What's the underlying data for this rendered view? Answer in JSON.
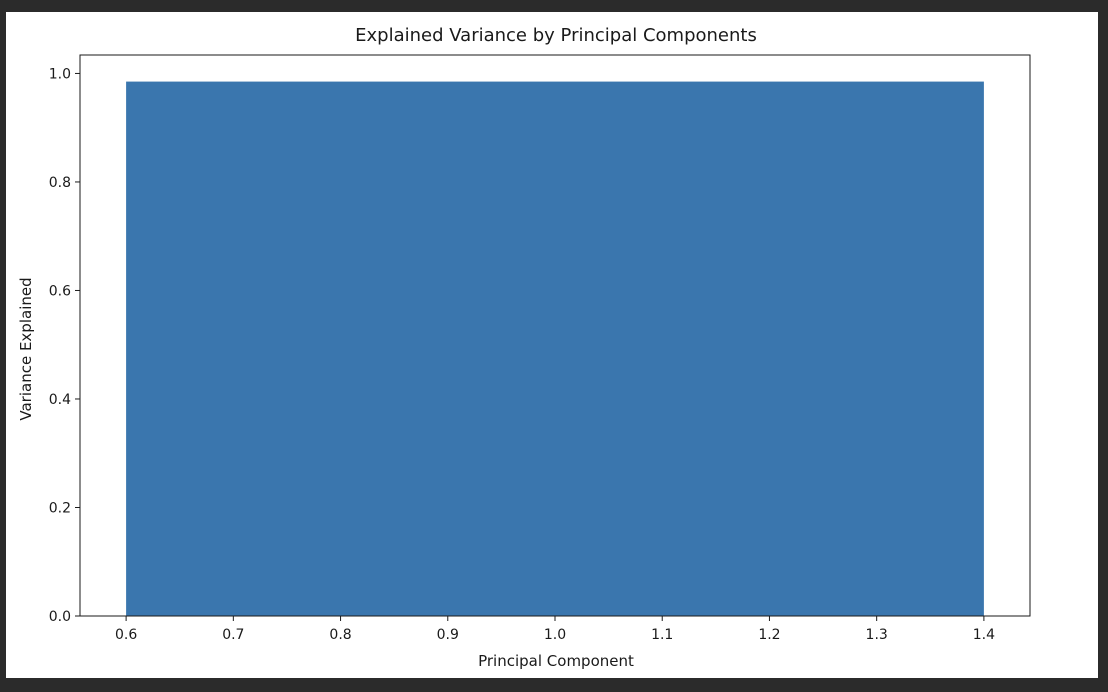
{
  "window": {
    "background_color": "#2b2b2b",
    "figure_color": "#ffffff"
  },
  "chart_data": {
    "type": "bar",
    "title": "Explained Variance by Principal Components",
    "xlabel": "Principal Component",
    "ylabel": "Variance Explained",
    "categories": [
      1
    ],
    "values": [
      0.985
    ],
    "bar_width": 0.8,
    "bar_color": "#3a76ae",
    "xlim": [
      0.557,
      1.443
    ],
    "ylim": [
      0,
      1.034
    ],
    "xticks": [
      0.6,
      0.7,
      0.8,
      0.9,
      1.0,
      1.1,
      1.2,
      1.3,
      1.4
    ],
    "xtick_labels": [
      "0.6",
      "0.7",
      "0.8",
      "0.9",
      "1.0",
      "1.1",
      "1.2",
      "1.3",
      "1.4"
    ],
    "yticks": [
      0.0,
      0.2,
      0.4,
      0.6,
      0.8,
      1.0
    ],
    "ytick_labels": [
      "0.0",
      "0.2",
      "0.4",
      "0.6",
      "0.8",
      "1.0"
    ],
    "grid": false,
    "legend": "none"
  }
}
